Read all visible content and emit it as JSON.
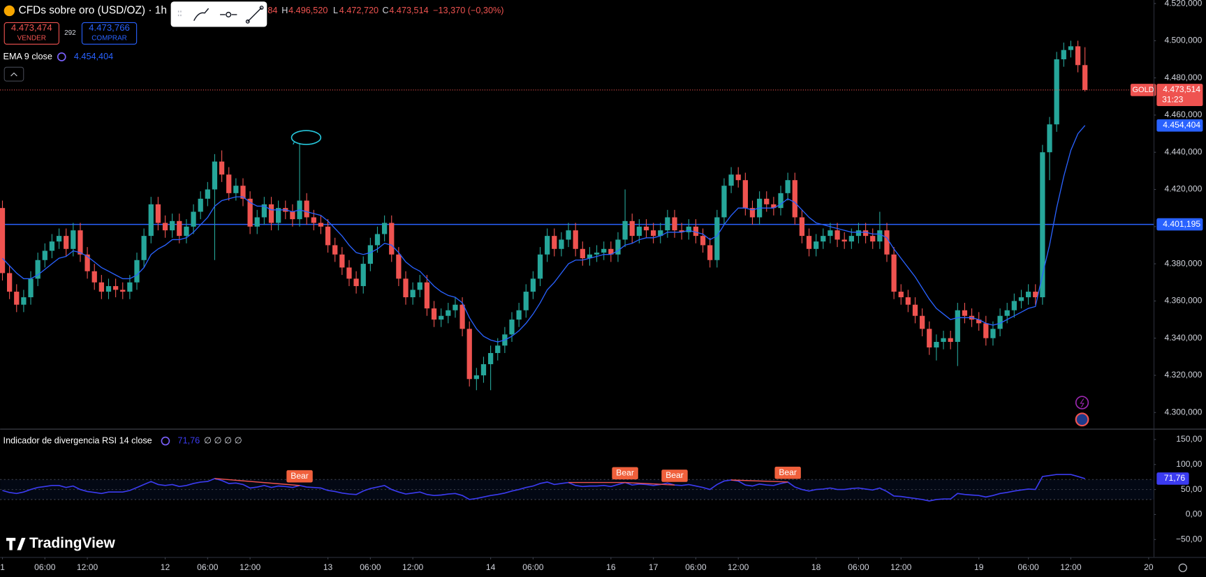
{
  "header": {
    "symbol": "CFDs sobre oro (USD/OZ) · 1h ·",
    "open_fragment": "84",
    "high_label": "H",
    "high": "4.496,520",
    "low_label": "L",
    "low": "4.472,720",
    "close_label": "C",
    "close": "4.473,514",
    "change": "−13,370 (−0,30%)"
  },
  "trade": {
    "sell": "4.473,474",
    "sell_label": "VENDER",
    "spread": "292",
    "buy": "4.473,766",
    "buy_label": "COMPRAR"
  },
  "ema_legend": {
    "name": "EMA 9 close",
    "value": "4.454,404"
  },
  "rsi_legend": {
    "name": "Indicador de divergencia RSI 14 close",
    "value": "71,76",
    "extra": "∅ ∅ ∅ ∅"
  },
  "brand": "TradingView",
  "chart_data": [
    {
      "type": "candlestick",
      "up_color": "#26a69a",
      "down_color": "#ef5350",
      "xlim": [
        -0.33,
        162.7
      ],
      "ylim": [
        4291.7,
        4521.9
      ],
      "yticks": [
        {
          "value": 4300,
          "label": "4.300,000"
        },
        {
          "value": 4320,
          "label": "4.320,000"
        },
        {
          "value": 4340,
          "label": "4.340,000"
        },
        {
          "value": 4360,
          "label": "4.360,000"
        },
        {
          "value": 4380,
          "label": "4.380,000"
        },
        {
          "value": 4400,
          "label": "4.400,000"
        },
        {
          "value": 4420,
          "label": "4.420,000"
        },
        {
          "value": 4440,
          "label": "4.440,000"
        },
        {
          "value": 4460,
          "label": "4.460,000"
        },
        {
          "value": 4480,
          "label": "4.480,000"
        },
        {
          "value": 4500,
          "label": "4.500,000"
        },
        {
          "value": 4520,
          "label": "4.520,000"
        }
      ],
      "xticks": [
        {
          "value": 0,
          "label": "1"
        },
        {
          "value": 6,
          "label": "06:00"
        },
        {
          "value": 12,
          "label": "12:00"
        },
        {
          "value": 23,
          "label": "12"
        },
        {
          "value": 29,
          "label": "06:00"
        },
        {
          "value": 35,
          "label": "12:00"
        },
        {
          "value": 46,
          "label": "13"
        },
        {
          "value": 52,
          "label": "06:00"
        },
        {
          "value": 58,
          "label": "12:00"
        },
        {
          "value": 69,
          "label": "14"
        },
        {
          "value": 75,
          "label": "06:00"
        },
        {
          "value": 86,
          "label": "16"
        },
        {
          "value": 92,
          "label": "17"
        },
        {
          "value": 98,
          "label": "06:00"
        },
        {
          "value": 104,
          "label": "12:00"
        },
        {
          "value": 115,
          "label": "18"
        },
        {
          "value": 121,
          "label": "06:00"
        },
        {
          "value": 127,
          "label": "12:00"
        },
        {
          "value": 138,
          "label": "19"
        },
        {
          "value": 145,
          "label": "06:00"
        },
        {
          "value": 151,
          "label": "12:00"
        },
        {
          "value": 162,
          "label": "20"
        }
      ],
      "open": [
        4410,
        4375,
        4365,
        4358,
        4362,
        4372,
        4382,
        4387,
        4392,
        4395,
        4388,
        4398,
        4385,
        4376,
        4370,
        4365,
        4368,
        4366,
        4365,
        4370,
        4382,
        4395,
        4412,
        4402,
        4398,
        4403,
        4395,
        4400,
        4408,
        4415,
        4420,
        4435,
        4428,
        4418,
        4422,
        4415,
        4400,
        4405,
        4412,
        4402,
        4410,
        4408,
        4404,
        4414,
        4405,
        4402,
        4400,
        4390,
        4385,
        4378,
        4372,
        4368,
        4380,
        4390,
        4396,
        4402,
        4385,
        4372,
        4362,
        4366,
        4370,
        4356,
        4350,
        4352,
        4355,
        4358,
        4345,
        4318,
        4320,
        4326,
        4332,
        4336,
        4342,
        4350,
        4355,
        4365,
        4372,
        4385,
        4395,
        4388,
        4393,
        4398,
        4388,
        4383,
        4385,
        4386,
        4388,
        4385,
        4393,
        4403,
        4395,
        4400,
        4398,
        4395,
        4398,
        4405,
        4398,
        4397,
        4400,
        4395,
        4390,
        4382,
        4405,
        4422,
        4428,
        4425,
        4410,
        4405,
        4415,
        4412,
        4410,
        4418,
        4425,
        4405,
        4395,
        4388,
        4392,
        4395,
        4398,
        4393,
        4392,
        4395,
        4398,
        4395,
        4392,
        4398,
        4385,
        4365,
        4362,
        4358,
        4352,
        4345,
        4335,
        4338,
        4340,
        4338,
        4355,
        4352,
        4350,
        4348,
        4340,
        4345,
        4352,
        4355,
        4360,
        4362,
        4365,
        4362,
        4440,
        4455,
        4490,
        4495,
        4497,
        4486.884
      ],
      "high": [
        4414,
        4379,
        4369,
        4366,
        4376,
        4386,
        4391,
        4396,
        4399,
        4399,
        4402,
        4402,
        4389,
        4380,
        4374,
        4372,
        4372,
        4370,
        4374,
        4386,
        4399,
        4416,
        4416,
        4406,
        4407,
        4407,
        4404,
        4412,
        4419,
        4424,
        4439,
        4441,
        4432,
        4426,
        4426,
        4419,
        4409,
        4416,
        4416,
        4414,
        4414,
        4412,
        4445,
        4418,
        4409,
        4406,
        4404,
        4394,
        4389,
        4382,
        4376,
        4384,
        4394,
        4400,
        4406,
        4406,
        4389,
        4376,
        4370,
        4374,
        4374,
        4360,
        4356,
        4359,
        4362,
        4362,
        4349,
        4324,
        4330,
        4336,
        4340,
        4346,
        4354,
        4359,
        4369,
        4376,
        4389,
        4399,
        4399,
        4397,
        4402,
        4402,
        4392,
        4389,
        4390,
        4392,
        4392,
        4397,
        4420,
        4407,
        4404,
        4404,
        4402,
        4402,
        4409,
        4409,
        4402,
        4404,
        4404,
        4399,
        4394,
        4409,
        4426,
        4432,
        4432,
        4429,
        4414,
        4419,
        4419,
        4416,
        4422,
        4429,
        4429,
        4409,
        4399,
        4396,
        4399,
        4402,
        4402,
        4397,
        4399,
        4402,
        4402,
        4399,
        4408,
        4402,
        4389,
        4369,
        4366,
        4362,
        4356,
        4349,
        4342,
        4344,
        4344,
        4359,
        4359,
        4356,
        4354,
        4352,
        4349,
        4356,
        4359,
        4364,
        4366,
        4369,
        4369,
        4444,
        4459,
        4494,
        4499,
        4500,
        4500,
        4496.52
      ],
      "low": [
        4371,
        4361,
        4354,
        4354,
        4358,
        4368,
        4378,
        4383,
        4388,
        4384,
        4384,
        4381,
        4372,
        4366,
        4361,
        4361,
        4362,
        4361,
        4361,
        4366,
        4378,
        4391,
        4398,
        4394,
        4394,
        4391,
        4391,
        4396,
        4404,
        4411,
        4382,
        4424,
        4414,
        4414,
        4411,
        4396,
        4396,
        4401,
        4398,
        4398,
        4404,
        4400,
        4400,
        4401,
        4398,
        4396,
        4386,
        4381,
        4374,
        4368,
        4364,
        4364,
        4376,
        4386,
        4392,
        4381,
        4368,
        4358,
        4358,
        4362,
        4352,
        4346,
        4346,
        4348,
        4351,
        4341,
        4314,
        4312,
        4316,
        4312,
        4328,
        4332,
        4338,
        4346,
        4351,
        4361,
        4368,
        4381,
        4384,
        4384,
        4389,
        4384,
        4379,
        4379,
        4381,
        4382,
        4381,
        4381,
        4389,
        4391,
        4391,
        4394,
        4391,
        4391,
        4394,
        4394,
        4393,
        4393,
        4391,
        4386,
        4378,
        4378,
        4401,
        4418,
        4421,
        4406,
        4401,
        4401,
        4408,
        4406,
        4406,
        4414,
        4401,
        4391,
        4384,
        4384,
        4388,
        4391,
        4389,
        4388,
        4388,
        4391,
        4391,
        4388,
        4388,
        4381,
        4361,
        4358,
        4354,
        4348,
        4341,
        4331,
        4328,
        4334,
        4334,
        4325,
        4348,
        4346,
        4344,
        4336,
        4336,
        4341,
        4348,
        4351,
        4356,
        4358,
        4358,
        4358,
        4425,
        4451,
        4486,
        4491,
        4483,
        4472.72
      ],
      "close": [
        4375,
        4365,
        4358,
        4362,
        4372,
        4382,
        4387,
        4392,
        4395,
        4388,
        4398,
        4385,
        4376,
        4370,
        4365,
        4368,
        4366,
        4365,
        4370,
        4382,
        4395,
        4412,
        4402,
        4398,
        4403,
        4395,
        4400,
        4408,
        4415,
        4420,
        4435,
        4428,
        4418,
        4422,
        4415,
        4400,
        4405,
        4412,
        4402,
        4410,
        4408,
        4404,
        4414,
        4405,
        4402,
        4400,
        4390,
        4385,
        4378,
        4372,
        4368,
        4380,
        4390,
        4396,
        4402,
        4385,
        4372,
        4362,
        4366,
        4370,
        4356,
        4350,
        4352,
        4355,
        4358,
        4345,
        4318,
        4320,
        4326,
        4332,
        4336,
        4342,
        4350,
        4355,
        4365,
        4372,
        4385,
        4395,
        4388,
        4393,
        4398,
        4388,
        4383,
        4385,
        4386,
        4388,
        4385,
        4393,
        4403,
        4395,
        4400,
        4398,
        4395,
        4398,
        4405,
        4398,
        4397,
        4400,
        4395,
        4390,
        4382,
        4405,
        4422,
        4428,
        4425,
        4410,
        4405,
        4415,
        4412,
        4410,
        4418,
        4425,
        4405,
        4395,
        4388,
        4392,
        4395,
        4398,
        4393,
        4392,
        4395,
        4398,
        4395,
        4392,
        4398,
        4385,
        4365,
        4362,
        4358,
        4352,
        4345,
        4335,
        4338,
        4340,
        4338,
        4355,
        4352,
        4350,
        4348,
        4340,
        4345,
        4352,
        4355,
        4360,
        4362,
        4365,
        4362,
        4440,
        4455,
        4490,
        4495,
        4497,
        4486.884,
        4473.514
      ],
      "ema": {
        "color": "#2962ff",
        "last_label": "4.454,404",
        "values": [
          4383,
          4379,
          4375,
          4372,
          4372,
          4374,
          4377,
          4380,
          4383,
          4384,
          4387,
          4386,
          4384,
          4381,
          4378,
          4376,
          4374,
          4372,
          4372,
          4374,
          4378,
          4385,
          4388,
          4390,
          4393,
          4393,
          4394,
          4397,
          4401,
          4405,
          4411,
          4414,
          4415,
          4416,
          4416,
          4413,
          4411,
          4411,
          4409,
          4409,
          4409,
          4408,
          4409,
          4408,
          4407,
          4406,
          4403,
          4399,
          4395,
          4390,
          4386,
          4385,
          4386,
          4388,
          4391,
          4390,
          4386,
          4381,
          4378,
          4376,
          4372,
          4368,
          4365,
          4363,
          4362,
          4359,
          4351,
          4345,
          4341,
          4339,
          4338,
          4339,
          4341,
          4344,
          4348,
          4353,
          4359,
          4366,
          4370,
          4375,
          4380,
          4382,
          4382,
          4383,
          4384,
          4385,
          4385,
          4387,
          4390,
          4391,
          4393,
          4394,
          4394,
          4395,
          4397,
          4397,
          4397,
          4398,
          4397,
          4396,
          4393,
          4395,
          4401,
          4406,
          4410,
          4410,
          4409,
          4410,
          4410,
          4410,
          4412,
          4415,
          4413,
          4409,
          4405,
          4402,
          4401,
          4400,
          4399,
          4398,
          4397,
          4397,
          4397,
          4396,
          4396,
          4394,
          4388,
          4383,
          4378,
          4373,
          4367,
          4361,
          4356,
          4353,
          4350,
          4351,
          4351,
          4351,
          4350,
          4348,
          4347,
          4348,
          4350,
          4352,
          4354,
          4356,
          4357,
          4374,
          4390,
          4410,
          4427,
          4441,
          4450,
          4454.404
        ]
      },
      "hline": {
        "value": 4401.195,
        "label": "4.401,195",
        "color": "#2962ff"
      },
      "last_price": {
        "name": "GOLD",
        "value": 4473.514,
        "label": "4.473,514",
        "countdown": "31:23"
      }
    },
    {
      "type": "line",
      "xlim": [
        -0.33,
        162.7
      ],
      "ylim": [
        -85,
        170
      ],
      "color": "#3b3bf0",
      "yticks": [
        {
          "value": 150,
          "label": "150,00"
        },
        {
          "value": 100,
          "label": "100,00"
        },
        {
          "value": 50,
          "label": "50,00"
        },
        {
          "value": 0,
          "label": "0,00"
        },
        {
          "value": -50,
          "label": "−50,00"
        }
      ],
      "band": [
        30,
        70
      ],
      "midline": 50,
      "last_label": "71,76",
      "values": [
        48,
        44,
        42,
        45,
        50,
        54,
        56,
        58,
        58,
        54,
        57,
        50,
        46,
        44,
        42,
        45,
        45,
        45,
        48,
        54,
        60,
        66,
        60,
        58,
        60,
        56,
        58,
        62,
        65,
        66,
        72,
        68,
        62,
        63,
        60,
        53,
        55,
        58,
        54,
        57,
        56,
        54,
        58,
        55,
        54,
        53,
        48,
        46,
        43,
        41,
        40,
        47,
        52,
        55,
        58,
        50,
        45,
        41,
        43,
        45,
        40,
        38,
        39,
        41,
        42,
        38,
        30,
        32,
        35,
        38,
        40,
        43,
        47,
        50,
        54,
        57,
        62,
        65,
        60,
        62,
        64,
        58,
        56,
        57,
        57,
        58,
        56,
        60,
        64,
        59,
        61,
        60,
        58,
        60,
        63,
        59,
        58,
        60,
        57,
        54,
        50,
        60,
        67,
        69,
        67,
        59,
        57,
        61,
        59,
        58,
        62,
        65,
        55,
        50,
        47,
        50,
        51,
        53,
        50,
        50,
        52,
        53,
        51,
        49,
        53,
        46,
        37,
        36,
        34,
        32,
        30,
        27,
        30,
        31,
        31,
        42,
        40,
        39,
        38,
        35,
        38,
        42,
        44,
        47,
        49,
        51,
        50,
        76,
        78,
        80,
        80,
        80,
        76,
        71.76
      ],
      "divergences": [
        {
          "label": "Bear",
          "start": 30,
          "end": 42
        },
        {
          "label": "Bear",
          "start": 80,
          "end": 88
        },
        {
          "label": "Bear",
          "start": 88,
          "end": 95
        },
        {
          "label": "Bear",
          "start": 103,
          "end": 111
        }
      ]
    }
  ]
}
